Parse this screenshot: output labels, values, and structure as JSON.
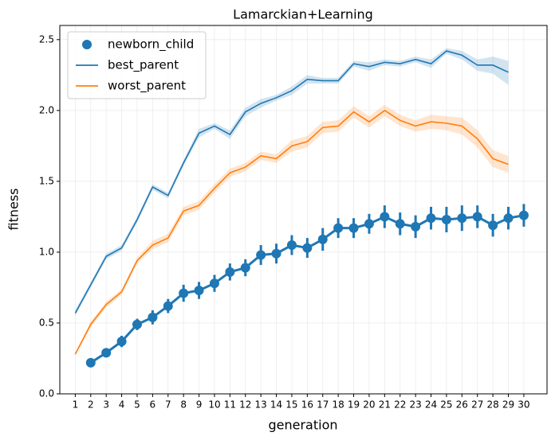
{
  "chart_data": {
    "type": "line",
    "title": "Lamarckian+Learning",
    "x_label": "generation",
    "y_label": "fitness",
    "xlim": [
      0,
      31.5
    ],
    "ylim": [
      0,
      2.6
    ],
    "xticks": [
      1,
      2,
      3,
      4,
      5,
      6,
      7,
      8,
      9,
      10,
      11,
      12,
      13,
      14,
      15,
      16,
      17,
      18,
      19,
      20,
      21,
      22,
      23,
      24,
      25,
      26,
      27,
      28,
      29,
      30
    ],
    "yticks": [
      {
        "value": 0,
        "label": "0.0"
      },
      {
        "value": 0.5,
        "label": "0.5"
      },
      {
        "value": 1,
        "label": "1.0"
      },
      {
        "value": 1.5,
        "label": "1.5"
      },
      {
        "value": 2,
        "label": "2.0"
      },
      {
        "value": 2.5,
        "label": "2.5"
      }
    ],
    "grid": true,
    "legend": "upper left",
    "series": [
      {
        "name": "newborn_child",
        "color": "#1f77b4",
        "style": "points",
        "x": [
          2,
          3,
          4,
          5,
          6,
          7,
          8,
          9,
          10,
          11,
          12,
          13,
          14,
          15,
          16,
          17,
          18,
          19,
          20,
          21,
          22,
          23,
          24,
          25,
          26,
          27,
          28,
          29,
          30
        ],
        "values": [
          0.22,
          0.29,
          0.37,
          0.49,
          0.54,
          0.62,
          0.71,
          0.73,
          0.78,
          0.86,
          0.89,
          0.98,
          0.99,
          1.05,
          1.03,
          1.09,
          1.17,
          1.17,
          1.2,
          1.25,
          1.2,
          1.18,
          1.24,
          1.23,
          1.24,
          1.25,
          1.19,
          1.24,
          1.26
        ],
        "errors": [
          0.02,
          0.03,
          0.04,
          0.04,
          0.05,
          0.05,
          0.06,
          0.06,
          0.06,
          0.06,
          0.06,
          0.07,
          0.07,
          0.07,
          0.07,
          0.08,
          0.07,
          0.07,
          0.07,
          0.08,
          0.08,
          0.08,
          0.08,
          0.09,
          0.09,
          0.08,
          0.08,
          0.08,
          0.08
        ]
      },
      {
        "name": "best_parent",
        "color": "#1f77b4",
        "style": "line",
        "x": [
          1,
          2,
          3,
          4,
          5,
          6,
          7,
          8,
          9,
          10,
          11,
          12,
          13,
          14,
          15,
          16,
          17,
          18,
          19,
          20,
          21,
          22,
          23,
          24,
          25,
          26,
          27,
          28,
          29
        ],
        "values": [
          0.57,
          0.77,
          0.97,
          1.03,
          1.23,
          1.46,
          1.4,
          1.63,
          1.84,
          1.89,
          1.83,
          1.99,
          2.05,
          2.09,
          2.14,
          2.22,
          2.21,
          2.21,
          2.33,
          2.31,
          2.34,
          2.33,
          2.36,
          2.33,
          2.42,
          2.39,
          2.32,
          2.32,
          2.27
        ],
        "lower": [
          0.55,
          0.75,
          0.95,
          1.01,
          1.21,
          1.44,
          1.38,
          1.61,
          1.81,
          1.87,
          1.8,
          1.96,
          2.02,
          2.07,
          2.11,
          2.19,
          2.19,
          2.19,
          2.31,
          2.28,
          2.32,
          2.31,
          2.34,
          2.3,
          2.4,
          2.36,
          2.28,
          2.26,
          2.18
        ],
        "upper": [
          0.59,
          0.79,
          0.99,
          1.05,
          1.25,
          1.48,
          1.42,
          1.65,
          1.87,
          1.91,
          1.86,
          2.02,
          2.08,
          2.11,
          2.17,
          2.25,
          2.23,
          2.23,
          2.35,
          2.34,
          2.36,
          2.35,
          2.38,
          2.36,
          2.44,
          2.42,
          2.36,
          2.38,
          2.35
        ]
      },
      {
        "name": "worst_parent",
        "color": "#ff7f0e",
        "style": "line",
        "x": [
          1,
          2,
          3,
          4,
          5,
          6,
          7,
          8,
          9,
          10,
          11,
          12,
          13,
          14,
          15,
          16,
          17,
          18,
          19,
          20,
          21,
          22,
          23,
          24,
          25,
          26,
          27,
          28,
          29
        ],
        "values": [
          0.28,
          0.49,
          0.63,
          0.72,
          0.94,
          1.05,
          1.1,
          1.29,
          1.33,
          1.45,
          1.56,
          1.6,
          1.68,
          1.66,
          1.75,
          1.78,
          1.88,
          1.89,
          1.99,
          1.92,
          2.0,
          1.93,
          1.89,
          1.92,
          1.91,
          1.89,
          1.8,
          1.66,
          1.62
        ],
        "lower": [
          0.27,
          0.47,
          0.61,
          0.7,
          0.92,
          1.02,
          1.07,
          1.26,
          1.3,
          1.42,
          1.53,
          1.57,
          1.65,
          1.63,
          1.71,
          1.74,
          1.84,
          1.85,
          1.95,
          1.88,
          1.96,
          1.89,
          1.85,
          1.87,
          1.86,
          1.83,
          1.74,
          1.6,
          1.56
        ],
        "upper": [
          0.29,
          0.51,
          0.65,
          0.74,
          0.96,
          1.08,
          1.13,
          1.32,
          1.36,
          1.48,
          1.59,
          1.63,
          1.71,
          1.69,
          1.79,
          1.82,
          1.92,
          1.93,
          2.03,
          1.96,
          2.04,
          1.97,
          1.93,
          1.97,
          1.96,
          1.95,
          1.86,
          1.72,
          1.68
        ]
      }
    ]
  }
}
